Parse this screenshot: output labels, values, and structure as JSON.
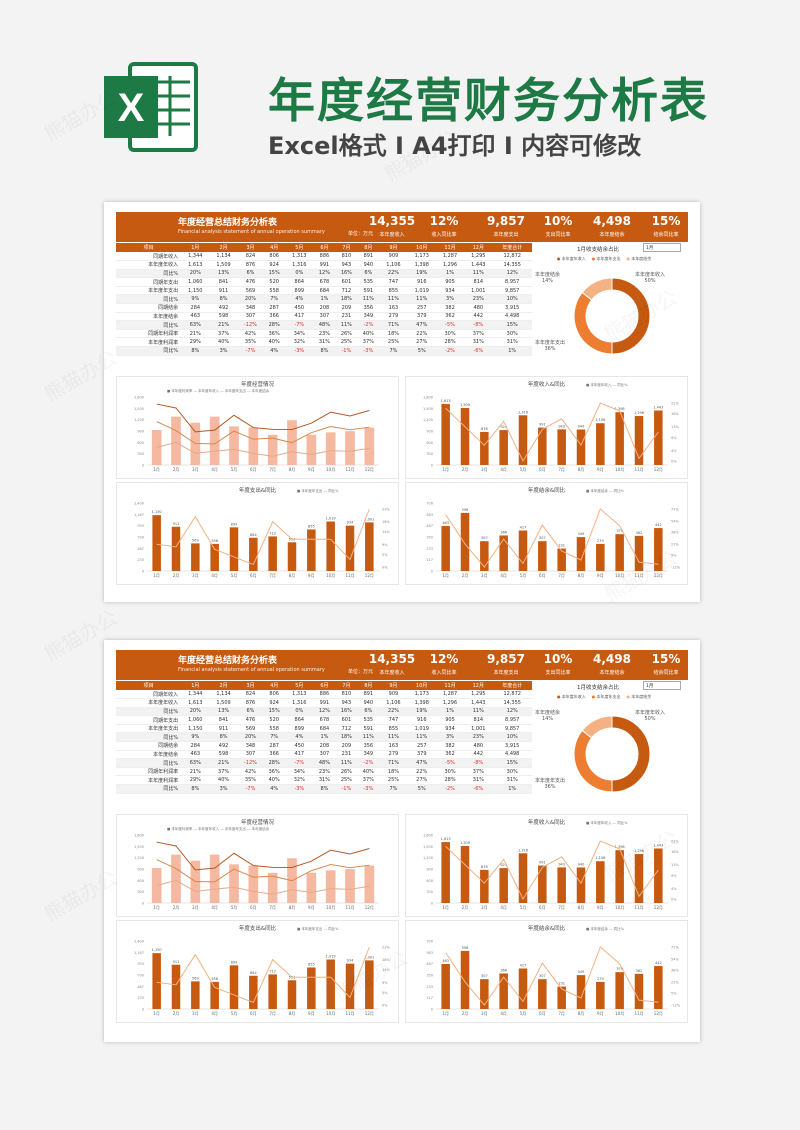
{
  "header": {
    "title": "年度经营财务分析表",
    "subtitle": "Excel格式 I A4打印 I 内容可修改",
    "logo_letter": "X"
  },
  "watermark": "熊猫办公",
  "report": {
    "title": "年度经营总结财务分析表",
    "subtitle_en": "Financial analysis statement of annual operation summary",
    "unit": "单位：万元",
    "kpis": [
      {
        "value": "14,355",
        "label": "本年度收入"
      },
      {
        "value": "12%",
        "label": "收入同比率"
      },
      {
        "value": "9,857",
        "label": "本年度支出"
      },
      {
        "value": "10%",
        "label": "支出同比率"
      },
      {
        "value": "4,498",
        "label": "本年度结余"
      },
      {
        "value": "15%",
        "label": "结余同比率"
      }
    ],
    "table": {
      "headers": [
        "项目",
        "1月",
        "2月",
        "3月",
        "4月",
        "5月",
        "6月",
        "7月",
        "8月",
        "9月",
        "10月",
        "11月",
        "12月",
        "年度合计"
      ],
      "rows": [
        {
          "pct": false,
          "cells": [
            "同期年收入",
            "1,344",
            "1,134",
            "824",
            "806",
            "1,313",
            "886",
            "810",
            "891",
            "909",
            "1,173",
            "1,287",
            "1,295",
            "12,872"
          ]
        },
        {
          "pct": false,
          "cells": [
            "本年度年收入",
            "1,613",
            "1,509",
            "876",
            "924",
            "1,316",
            "991",
            "943",
            "940",
            "1,106",
            "1,398",
            "1,296",
            "1,443",
            "14,355"
          ]
        },
        {
          "pct": true,
          "cells": [
            "同比%",
            "20%",
            "13%",
            "6%",
            "15%",
            "0%",
            "12%",
            "16%",
            "6%",
            "22%",
            "19%",
            "1%",
            "11%",
            "12%"
          ]
        },
        {
          "pct": false,
          "cells": [
            "同期年支出",
            "1,060",
            "841",
            "476",
            "520",
            "864",
            "678",
            "601",
            "535",
            "747",
            "916",
            "905",
            "814",
            "8,957"
          ]
        },
        {
          "pct": false,
          "cells": [
            "本年度年支出",
            "1,150",
            "911",
            "569",
            "558",
            "899",
            "684",
            "712",
            "591",
            "855",
            "1,019",
            "934",
            "1,001",
            "9,857"
          ]
        },
        {
          "pct": true,
          "cells": [
            "同比%",
            "9%",
            "8%",
            "20%",
            "7%",
            "4%",
            "1%",
            "18%",
            "11%",
            "11%",
            "11%",
            "3%",
            "23%",
            "10%"
          ]
        },
        {
          "pct": false,
          "cells": [
            "同期结余",
            "284",
            "492",
            "348",
            "287",
            "450",
            "208",
            "209",
            "356",
            "163",
            "257",
            "382",
            "480",
            "3,915"
          ]
        },
        {
          "pct": false,
          "cells": [
            "本年度结余",
            "463",
            "598",
            "307",
            "366",
            "417",
            "307",
            "231",
            "349",
            "279",
            "379",
            "362",
            "442",
            "4,498"
          ]
        },
        {
          "pct": true,
          "cells": [
            "同比%",
            "63%",
            "21%",
            "-12%",
            "28%",
            "-7%",
            "48%",
            "11%",
            "-2%",
            "71%",
            "47%",
            "-5%",
            "-8%",
            "15%"
          ]
        },
        {
          "pct": false,
          "cells": [
            "同期年利润率",
            "21%",
            "37%",
            "42%",
            "36%",
            "34%",
            "23%",
            "26%",
            "40%",
            "18%",
            "22%",
            "30%",
            "37%",
            "30%"
          ]
        },
        {
          "pct": false,
          "cells": [
            "本年度利润率",
            "29%",
            "40%",
            "35%",
            "40%",
            "32%",
            "31%",
            "25%",
            "37%",
            "25%",
            "27%",
            "28%",
            "31%",
            "31%"
          ]
        },
        {
          "pct": true,
          "cells": [
            "同比%",
            "8%",
            "3%",
            "-7%",
            "4%",
            "-3%",
            "8%",
            "-1%",
            "-3%",
            "7%",
            "5%",
            "-2%",
            "-6%",
            "1%"
          ]
        }
      ]
    },
    "donut": {
      "title": "1月收支结余占比",
      "select_value": "1月",
      "legend": [
        "本年度年收入",
        "本年度年支出",
        "本年度结余"
      ],
      "labels": [
        {
          "name": "本年度年收入",
          "pct": "50%"
        },
        {
          "name": "本年度年支出",
          "pct": "36%"
        },
        {
          "name": "本年度结余",
          "pct": "14%"
        }
      ],
      "values": [
        1613,
        1150,
        463
      ],
      "colors": [
        "#c65a11",
        "#ed7d31",
        "#f4b183"
      ]
    },
    "charts": {
      "overview": {
        "title": "年度经营情况",
        "legend": "■ 本年度利润率  — 本年度年收入  — 本年度年支出  — 本年度结余"
      },
      "income": {
        "title": "年度收入&同比",
        "legend": "■ 本年度年收入  — 同比%"
      },
      "expense": {
        "title": "年度支出&同比",
        "legend": "■ 本年度年支出  — 同比%"
      },
      "balance": {
        "title": "年度结余&同比",
        "legend": "■ 本年度结余  — 同比%"
      }
    }
  },
  "chart_data": [
    {
      "type": "bar",
      "title": "年度经营情况",
      "categories": [
        "1月",
        "2月",
        "3月",
        "4月",
        "5月",
        "6月",
        "7月",
        "8月",
        "9月",
        "10月",
        "11月",
        "12月"
      ],
      "series": [
        {
          "name": "本年度利润率",
          "type": "bar",
          "values": [
            29,
            40,
            35,
            40,
            32,
            31,
            25,
            37,
            25,
            27,
            28,
            31
          ]
        },
        {
          "name": "本年度年收入",
          "type": "line",
          "values": [
            1613,
            1509,
            876,
            924,
            1316,
            991,
            943,
            940,
            1106,
            1398,
            1296,
            1443
          ]
        },
        {
          "name": "本年度年支出",
          "type": "line",
          "values": [
            1150,
            911,
            569,
            558,
            899,
            684,
            712,
            591,
            855,
            1019,
            934,
            1001
          ]
        },
        {
          "name": "本年度结余",
          "type": "line",
          "values": [
            463,
            598,
            307,
            366,
            417,
            307,
            231,
            349,
            279,
            379,
            362,
            442
          ]
        }
      ],
      "ylim": [
        0,
        1800
      ]
    },
    {
      "type": "bar",
      "title": "年度收入&同比",
      "categories": [
        "1月",
        "2月",
        "3月",
        "4月",
        "5月",
        "6月",
        "7月",
        "8月",
        "9月",
        "10月",
        "11月",
        "12月"
      ],
      "series": [
        {
          "name": "本年度年收入",
          "type": "bar",
          "values": [
            1613,
            1509,
            876,
            924,
            1316,
            991,
            943,
            940,
            1106,
            1398,
            1296,
            1443
          ]
        },
        {
          "name": "同比%",
          "type": "line",
          "values": [
            20,
            13,
            6,
            15,
            0,
            12,
            16,
            6,
            22,
            19,
            1,
            11
          ]
        }
      ],
      "ylim": [
        0,
        1800
      ]
    },
    {
      "type": "bar",
      "title": "年度支出&同比",
      "categories": [
        "1月",
        "2月",
        "3月",
        "4月",
        "5月",
        "6月",
        "7月",
        "8月",
        "9月",
        "10月",
        "11月",
        "12月"
      ],
      "series": [
        {
          "name": "本年度年支出",
          "type": "bar",
          "values": [
            1150,
            911,
            569,
            558,
            899,
            684,
            712,
            591,
            855,
            1019,
            934,
            1001
          ]
        },
        {
          "name": "同比%",
          "type": "line",
          "values": [
            9,
            8,
            20,
            7,
            4,
            1,
            18,
            11,
            11,
            11,
            3,
            23
          ]
        }
      ],
      "ylim": [
        0,
        1400
      ]
    },
    {
      "type": "bar",
      "title": "年度结余&同比",
      "categories": [
        "1月",
        "2月",
        "3月",
        "4月",
        "5月",
        "6月",
        "7月",
        "8月",
        "9月",
        "10月",
        "11月",
        "12月"
      ],
      "series": [
        {
          "name": "本年度结余",
          "type": "bar",
          "values": [
            463,
            598,
            307,
            366,
            417,
            307,
            231,
            349,
            279,
            379,
            362,
            442
          ]
        },
        {
          "name": "同比%",
          "type": "line",
          "values": [
            63,
            21,
            -12,
            28,
            -7,
            48,
            11,
            -2,
            71,
            47,
            -5,
            -8
          ]
        }
      ],
      "ylim": [
        0,
        700
      ]
    }
  ]
}
